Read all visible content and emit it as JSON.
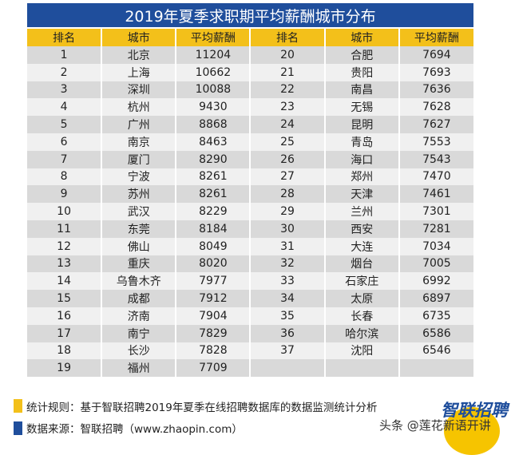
{
  "title": "2019年夏季求职期平均薪酬城市分布",
  "headers": [
    "排名",
    "城市",
    "平均薪酬",
    "排名",
    "城市",
    "平均薪酬"
  ],
  "rows": [
    [
      "1",
      "北京",
      "11204",
      "20",
      "合肥",
      "7694"
    ],
    [
      "2",
      "上海",
      "10662",
      "21",
      "贵阳",
      "7693"
    ],
    [
      "3",
      "深圳",
      "10088",
      "22",
      "南昌",
      "7636"
    ],
    [
      "4",
      "杭州",
      "9430",
      "23",
      "无锡",
      "7628"
    ],
    [
      "5",
      "广州",
      "8868",
      "24",
      "昆明",
      "7627"
    ],
    [
      "6",
      "南京",
      "8463",
      "25",
      "青岛",
      "7553"
    ],
    [
      "7",
      "厦门",
      "8290",
      "26",
      "海口",
      "7543"
    ],
    [
      "8",
      "宁波",
      "8261",
      "27",
      "郑州",
      "7470"
    ],
    [
      "9",
      "苏州",
      "8261",
      "28",
      "天津",
      "7461"
    ],
    [
      "10",
      "武汉",
      "8229",
      "29",
      "兰州",
      "7301"
    ],
    [
      "11",
      "东莞",
      "8184",
      "30",
      "西安",
      "7281"
    ],
    [
      "12",
      "佛山",
      "8049",
      "31",
      "大连",
      "7034"
    ],
    [
      "13",
      "重庆",
      "8020",
      "32",
      "烟台",
      "7005"
    ],
    [
      "14",
      "乌鲁木齐",
      "7977",
      "33",
      "石家庄",
      "6992"
    ],
    [
      "15",
      "成都",
      "7912",
      "34",
      "太原",
      "6897"
    ],
    [
      "16",
      "济南",
      "7904",
      "35",
      "长春",
      "6735"
    ],
    [
      "17",
      "南宁",
      "7829",
      "36",
      "哈尔滨",
      "6586"
    ],
    [
      "18",
      "长沙",
      "7828",
      "37",
      "沈阳",
      "6546"
    ],
    [
      "19",
      "福州",
      "7709",
      "",
      "",
      ""
    ]
  ],
  "notes": {
    "rule": "统计规则：基于智联招聘2019年夏季在线招聘数据库的数据监测统计分析",
    "source": "数据来源：智联招聘（www.zhaopin.com）"
  },
  "logo": "智联招聘",
  "watermark": "头条 @莲花新语开讲",
  "colors": {
    "title_bg": "#1f4e9c",
    "header_bg": "#f3c01a"
  }
}
